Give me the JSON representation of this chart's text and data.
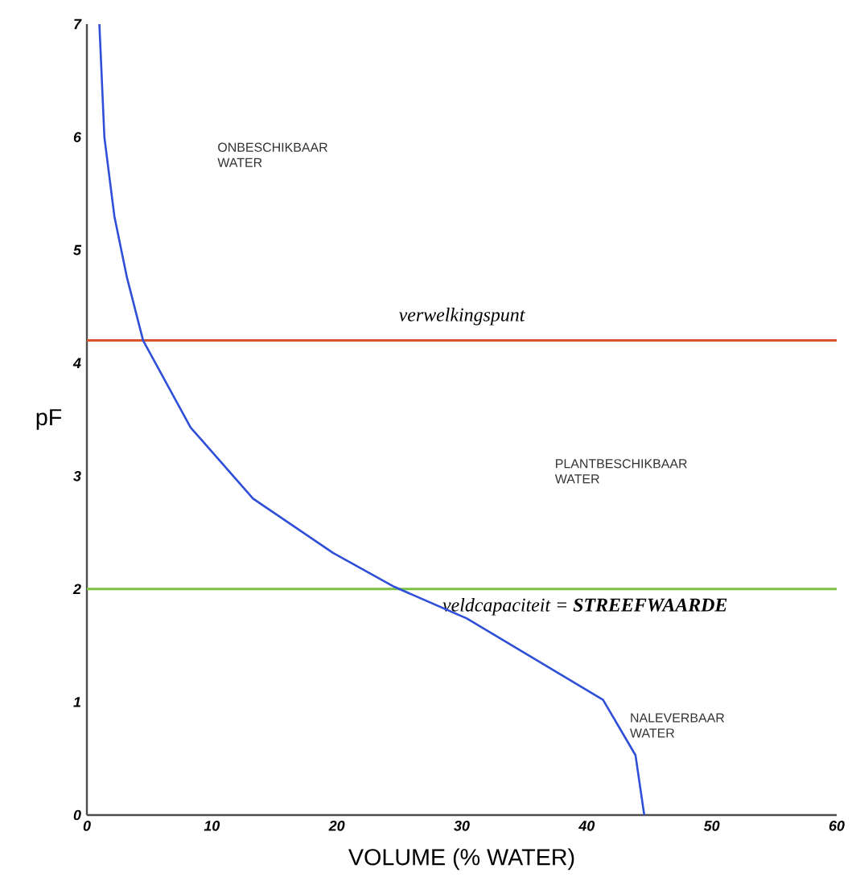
{
  "chart_data": {
    "type": "line",
    "xlabel": "VOLUME (% WATER)",
    "ylabel": "pF",
    "xlim": [
      0,
      60
    ],
    "ylim": [
      0,
      7
    ],
    "xticks": [
      0,
      10,
      20,
      30,
      40,
      50,
      60
    ],
    "yticks": [
      0,
      1,
      2,
      3,
      4,
      5,
      6,
      7
    ],
    "grid": false,
    "marker": "none",
    "line_style": "solid",
    "series": [
      {
        "color": "#2f4fd8",
        "x": [
          1.0,
          1.4,
          2.2,
          3.2,
          4.5,
          8.3,
          13.3,
          19.7,
          24.6,
          30.4,
          41.3,
          43.9,
          44.6
        ],
        "values": [
          7.0,
          6.0,
          5.3,
          4.76,
          4.2,
          3.43,
          2.8,
          2.32,
          2.02,
          1.74,
          1.02,
          0.53,
          0.0
        ]
      }
    ],
    "ref_lines": [
      {
        "axis": "y",
        "value": 4.2,
        "label": "verwelkingspunt",
        "color": "#d9542b"
      },
      {
        "axis": "y",
        "value": 2,
        "label": "veldcapaciteit  =  **STREEFWAARDE**",
        "color": "#7dc242"
      }
    ],
    "annotations": [
      "ONBESCHIKBAAR WATER",
      "PLANTBESCHIKBAAR WATER",
      "NALEVERBAAR WATER"
    ]
  }
}
